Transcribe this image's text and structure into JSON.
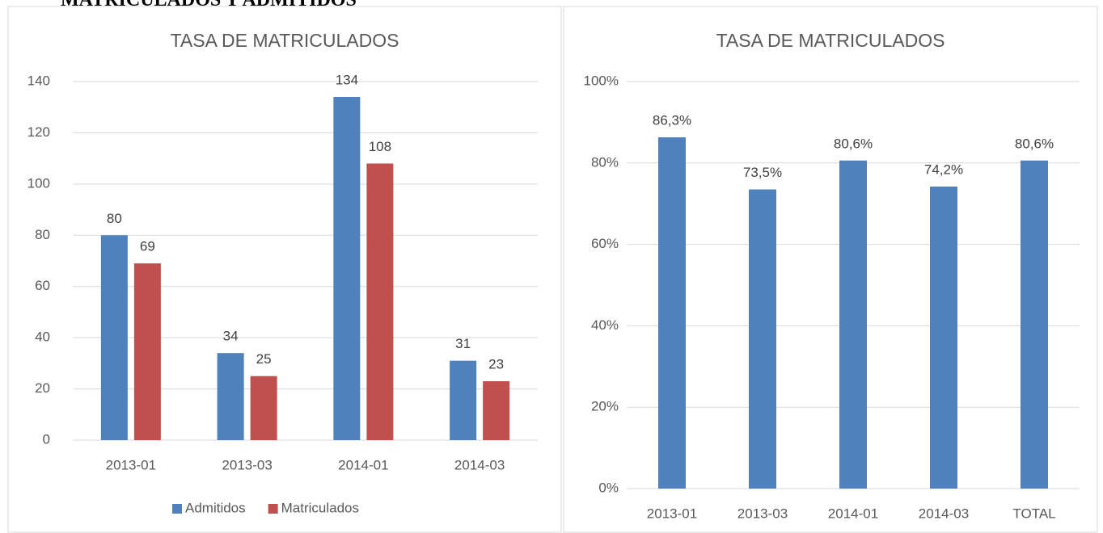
{
  "heading": "MATRICULADOS Y ADMITIDOS",
  "chart_data": [
    {
      "type": "bar",
      "title": "TASA DE MATRICULADOS",
      "categories": [
        "2013-01",
        "2013-03",
        "2014-01",
        "2014-03"
      ],
      "series": [
        {
          "name": "Admitidos",
          "color": "#4f81bd",
          "values": [
            80,
            34,
            134,
            31
          ]
        },
        {
          "name": "Matriculados",
          "color": "#c0504d",
          "values": [
            69,
            25,
            108,
            23
          ]
        }
      ],
      "ylim": [
        0,
        140
      ],
      "yticks": [
        0,
        20,
        40,
        60,
        80,
        100,
        120,
        140
      ],
      "grid": true,
      "legend": "bottom"
    },
    {
      "type": "bar",
      "title": "TASA DE MATRICULADOS",
      "categories": [
        "2013-01",
        "2013-03",
        "2014-01",
        "2014-03",
        "TOTAL"
      ],
      "values": [
        86.3,
        73.5,
        80.6,
        74.2,
        80.6
      ],
      "value_labels": [
        "86,3%",
        "73,5%",
        "80,6%",
        "74,2%",
        "80,6%"
      ],
      "color": "#4f81bd",
      "ylim": [
        0,
        100
      ],
      "yticks": [
        {
          "value": 0,
          "label": "0%"
        },
        {
          "value": 20,
          "label": "20%"
        },
        {
          "value": 40,
          "label": "40%"
        },
        {
          "value": 60,
          "label": "60%"
        },
        {
          "value": 80,
          "label": "80%"
        },
        {
          "value": 100,
          "label": "100%"
        }
      ],
      "grid": true
    }
  ]
}
